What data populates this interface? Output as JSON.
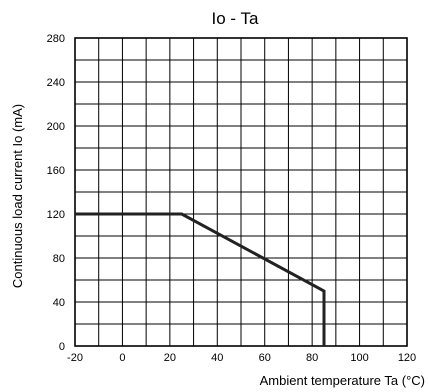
{
  "chart_data": {
    "type": "line",
    "title": "Io - Ta",
    "xlabel": "Ambient temperature Ta (°C)",
    "ylabel": "Continuous load current Io (mA)",
    "xlim": [
      -20,
      120
    ],
    "ylim": [
      0,
      280
    ],
    "x_ticks": [
      -20,
      0,
      20,
      40,
      60,
      80,
      100,
      120
    ],
    "y_ticks": [
      0,
      40,
      80,
      120,
      160,
      200,
      240,
      280
    ],
    "x_tick_labels": [
      "-20",
      "0",
      "20",
      "40",
      "60",
      "80",
      "100",
      "120"
    ],
    "y_tick_labels": [
      "0",
      "40",
      "80",
      "120",
      "160",
      "200",
      "240",
      "280"
    ],
    "grid": true,
    "grid_x_step": 10,
    "grid_y_step": 20,
    "series": [
      {
        "x": [
          -20,
          25,
          85,
          85
        ],
        "y": [
          120,
          120,
          50,
          0
        ]
      }
    ],
    "line_color": "#222222"
  }
}
